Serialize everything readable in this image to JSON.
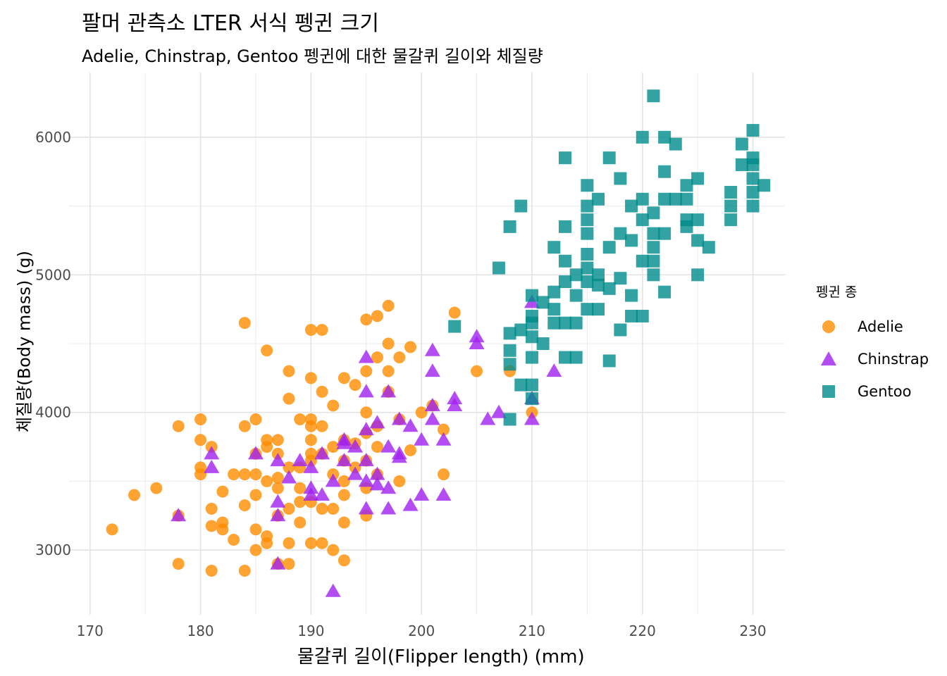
{
  "title": "팔머 관측소 LTER 서식 펭귄 크기",
  "subtitle": "Adelie, Chinstrap, Gentoo 펭귄에 대한 물갈퀴 길이와 체질량",
  "legend": {
    "title": "펭귄 종",
    "items": [
      {
        "label": "Adelie",
        "shape": "circle",
        "color": "#FF8C00"
      },
      {
        "label": "Chinstrap",
        "shape": "triangle",
        "color": "#A020F0"
      },
      {
        "label": "Gentoo",
        "shape": "square",
        "color": "#008B8B"
      }
    ]
  },
  "chart_data": {
    "type": "scatter",
    "title": "팔머 관측소 LTER 서식 펭귄 크기",
    "subtitle": "Adelie, Chinstrap, Gentoo 펭귄에 대한 물갈퀴 길이와 체질량",
    "xlabel": "물갈퀴 길이(Flipper length) (mm)",
    "ylabel": "체질량(Body mass) (g)",
    "xlim": [
      168.1,
      232.9
    ],
    "ylim": [
      2530,
      6470
    ],
    "xticks": [
      170,
      180,
      190,
      200,
      210,
      220,
      230
    ],
    "yticks": [
      3000,
      4000,
      5000,
      6000
    ],
    "grid": true,
    "legend_position": "right",
    "series": [
      {
        "name": "Adelie",
        "color": "#FF8C00",
        "marker": "circle",
        "points": [
          [
            172,
            3150
          ],
          [
            174,
            3400
          ],
          [
            176,
            3450
          ],
          [
            178,
            3900
          ],
          [
            178,
            3250
          ],
          [
            178,
            2900
          ],
          [
            180,
            3950
          ],
          [
            180,
            3800
          ],
          [
            180,
            3600
          ],
          [
            180,
            3550
          ],
          [
            181,
            3750
          ],
          [
            181,
            3300
          ],
          [
            181,
            3175
          ],
          [
            181,
            2850
          ],
          [
            182,
            3425
          ],
          [
            182,
            3200
          ],
          [
            182,
            3150
          ],
          [
            183,
            3550
          ],
          [
            183,
            3075
          ],
          [
            184,
            4650
          ],
          [
            184,
            3900
          ],
          [
            184,
            3325
          ],
          [
            184,
            2850
          ],
          [
            184,
            3550
          ],
          [
            185,
            3950
          ],
          [
            185,
            3700
          ],
          [
            185,
            3400
          ],
          [
            185,
            3150
          ],
          [
            185,
            3000
          ],
          [
            185,
            3550
          ],
          [
            186,
            4450
          ],
          [
            186,
            3800
          ],
          [
            186,
            3500
          ],
          [
            186,
            3100
          ],
          [
            186,
            3050
          ],
          [
            186,
            3750
          ],
          [
            187,
            3800
          ],
          [
            187,
            3700
          ],
          [
            187,
            3450
          ],
          [
            187,
            3250
          ],
          [
            187,
            2900
          ],
          [
            187,
            3525
          ],
          [
            188,
            4300
          ],
          [
            188,
            4100
          ],
          [
            188,
            3600
          ],
          [
            188,
            3300
          ],
          [
            188,
            3050
          ],
          [
            188,
            2900
          ],
          [
            189,
            3950
          ],
          [
            189,
            3600
          ],
          [
            189,
            3450
          ],
          [
            189,
            3350
          ],
          [
            189,
            3200
          ],
          [
            190,
            4600
          ],
          [
            190,
            4250
          ],
          [
            190,
            3950
          ],
          [
            190,
            3900
          ],
          [
            190,
            3700
          ],
          [
            190,
            3650
          ],
          [
            190,
            3350
          ],
          [
            190,
            3050
          ],
          [
            190,
            3800
          ],
          [
            191,
            4600
          ],
          [
            191,
            4150
          ],
          [
            191,
            3900
          ],
          [
            191,
            3700
          ],
          [
            191,
            3300
          ],
          [
            191,
            3050
          ],
          [
            192,
            4050
          ],
          [
            192,
            3750
          ],
          [
            192,
            3550
          ],
          [
            192,
            3300
          ],
          [
            192,
            3000
          ],
          [
            193,
            4250
          ],
          [
            193,
            3800
          ],
          [
            193,
            3650
          ],
          [
            193,
            3500
          ],
          [
            193,
            3400
          ],
          [
            193,
            3200
          ],
          [
            193,
            2925
          ],
          [
            194,
            4200
          ],
          [
            194,
            3775
          ],
          [
            194,
            3600
          ],
          [
            195,
            4675
          ],
          [
            195,
            4300
          ],
          [
            195,
            4000
          ],
          [
            195,
            3850
          ],
          [
            195,
            3650
          ],
          [
            195,
            3450
          ],
          [
            195,
            3250
          ],
          [
            196,
            4700
          ],
          [
            196,
            4400
          ],
          [
            196,
            3900
          ],
          [
            196,
            3750
          ],
          [
            196,
            3550
          ],
          [
            197,
            4775
          ],
          [
            197,
            4500
          ],
          [
            197,
            4300
          ],
          [
            197,
            4150
          ],
          [
            198,
            4400
          ],
          [
            198,
            3950
          ],
          [
            198,
            3500
          ],
          [
            199,
            4475
          ],
          [
            199,
            3725
          ],
          [
            200,
            4000
          ],
          [
            201,
            4050
          ],
          [
            202,
            3875
          ],
          [
            202,
            3550
          ],
          [
            203,
            4725
          ],
          [
            205,
            4300
          ],
          [
            208,
            4300
          ],
          [
            210,
            4000
          ]
        ]
      },
      {
        "name": "Chinstrap",
        "color": "#A020F0",
        "marker": "triangle",
        "points": [
          [
            178,
            3250
          ],
          [
            181,
            3700
          ],
          [
            181,
            3600
          ],
          [
            185,
            3700
          ],
          [
            187,
            3650
          ],
          [
            187,
            3350
          ],
          [
            187,
            3250
          ],
          [
            187,
            2900
          ],
          [
            188,
            3525
          ],
          [
            189,
            3650
          ],
          [
            190,
            3450
          ],
          [
            190,
            3400
          ],
          [
            190,
            3600
          ],
          [
            191,
            3700
          ],
          [
            191,
            3400
          ],
          [
            192,
            3500
          ],
          [
            192,
            2700
          ],
          [
            193,
            3800
          ],
          [
            193,
            3775
          ],
          [
            193,
            3650
          ],
          [
            194,
            3750
          ],
          [
            194,
            3550
          ],
          [
            195,
            4400
          ],
          [
            195,
            4150
          ],
          [
            195,
            3875
          ],
          [
            195,
            3650
          ],
          [
            195,
            3500
          ],
          [
            195,
            3300
          ],
          [
            196,
            3925
          ],
          [
            196,
            3550
          ],
          [
            196,
            3475
          ],
          [
            197,
            4150
          ],
          [
            197,
            3750
          ],
          [
            197,
            3450
          ],
          [
            197,
            3300
          ],
          [
            198,
            3700
          ],
          [
            198,
            3675
          ],
          [
            198,
            3950
          ],
          [
            199,
            3900
          ],
          [
            199,
            3325
          ],
          [
            200,
            3800
          ],
          [
            200,
            3400
          ],
          [
            201,
            4450
          ],
          [
            201,
            4300
          ],
          [
            201,
            4050
          ],
          [
            201,
            3950
          ],
          [
            202,
            3800
          ],
          [
            202,
            3400
          ],
          [
            203,
            4100
          ],
          [
            203,
            4050
          ],
          [
            205,
            4550
          ],
          [
            205,
            4500
          ],
          [
            206,
            3950
          ],
          [
            207,
            4000
          ],
          [
            210,
            4800
          ],
          [
            210,
            4100
          ],
          [
            210,
            3950
          ],
          [
            212,
            4300
          ]
        ]
      },
      {
        "name": "Gentoo",
        "color": "#008B8B",
        "marker": "square",
        "points": [
          [
            203,
            4625
          ],
          [
            207,
            5050
          ],
          [
            208,
            5350
          ],
          [
            208,
            4575
          ],
          [
            208,
            4450
          ],
          [
            208,
            4350
          ],
          [
            208,
            3950
          ],
          [
            209,
            5500
          ],
          [
            209,
            4600
          ],
          [
            209,
            4200
          ],
          [
            210,
            4850
          ],
          [
            210,
            4700
          ],
          [
            210,
            4650
          ],
          [
            210,
            4550
          ],
          [
            210,
            4400
          ],
          [
            210,
            4200
          ],
          [
            210,
            4100
          ],
          [
            211,
            4500
          ],
          [
            211,
            4800
          ],
          [
            212,
            5200
          ],
          [
            212,
            4875
          ],
          [
            212,
            4750
          ],
          [
            212,
            4650
          ],
          [
            213,
            5850
          ],
          [
            213,
            5350
          ],
          [
            213,
            5100
          ],
          [
            213,
            4950
          ],
          [
            213,
            4650
          ],
          [
            213,
            4400
          ],
          [
            214,
            5000
          ],
          [
            214,
            4850
          ],
          [
            214,
            4650
          ],
          [
            214,
            4400
          ],
          [
            215,
            5650
          ],
          [
            215,
            5500
          ],
          [
            215,
            5300
          ],
          [
            215,
            5150
          ],
          [
            215,
            5050
          ],
          [
            215,
            4950
          ],
          [
            215,
            4750
          ],
          [
            215,
            5400
          ],
          [
            216,
            5550
          ],
          [
            216,
            5000
          ],
          [
            216,
            4750
          ],
          [
            216,
            4925
          ],
          [
            217,
            5850
          ],
          [
            217,
            5200
          ],
          [
            217,
            4900
          ],
          [
            217,
            4375
          ],
          [
            218,
            5700
          ],
          [
            218,
            5300
          ],
          [
            218,
            4600
          ],
          [
            218,
            4975
          ],
          [
            219,
            5500
          ],
          [
            219,
            5250
          ],
          [
            219,
            4850
          ],
          [
            219,
            4700
          ],
          [
            220,
            6000
          ],
          [
            220,
            5550
          ],
          [
            220,
            5400
          ],
          [
            220,
            5100
          ],
          [
            220,
            4700
          ],
          [
            221,
            6300
          ],
          [
            221,
            5450
          ],
          [
            221,
            5300
          ],
          [
            221,
            5100
          ],
          [
            221,
            5000
          ],
          [
            221,
            5200
          ],
          [
            222,
            6000
          ],
          [
            222,
            5750
          ],
          [
            222,
            5550
          ],
          [
            222,
            5300
          ],
          [
            222,
            4875
          ],
          [
            223,
            5950
          ],
          [
            223,
            5550
          ],
          [
            224,
            5650
          ],
          [
            224,
            5350
          ],
          [
            224,
            5550
          ],
          [
            224,
            5400
          ],
          [
            225,
            5700
          ],
          [
            225,
            5400
          ],
          [
            225,
            5250
          ],
          [
            225,
            5000
          ],
          [
            226,
            5200
          ],
          [
            228,
            5600
          ],
          [
            228,
            5500
          ],
          [
            228,
            5400
          ],
          [
            229,
            5950
          ],
          [
            229,
            5800
          ],
          [
            230,
            6050
          ],
          [
            230,
            5850
          ],
          [
            230,
            5800
          ],
          [
            230,
            5700
          ],
          [
            230,
            5600
          ],
          [
            230,
            5500
          ],
          [
            231,
            5650
          ]
        ]
      }
    ]
  }
}
